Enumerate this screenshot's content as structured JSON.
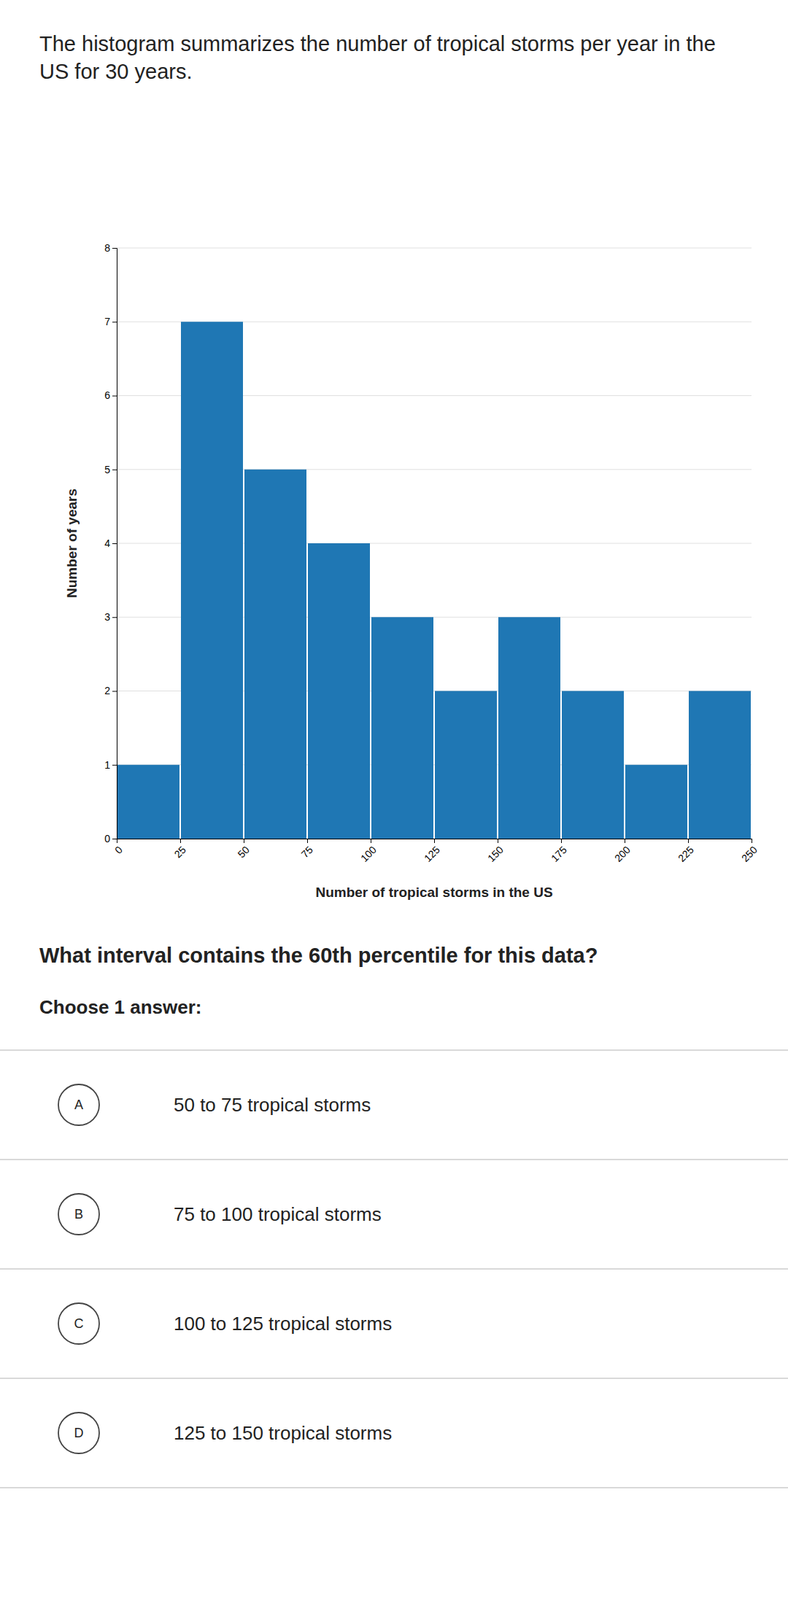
{
  "chart_data": {
    "type": "histogram",
    "title": "The histogram summarizes the number of tropical storms per year in the US for 30 years.",
    "xlabel": "Number of tropical storms in the US",
    "ylabel": "Number of years",
    "bins": [
      0,
      25,
      50,
      75,
      100,
      125,
      150,
      175,
      200,
      225,
      250
    ],
    "values": [
      1,
      7,
      5,
      4,
      3,
      2,
      3,
      2,
      1,
      2
    ],
    "xlim": [
      0,
      250
    ],
    "xticks": [
      0,
      25,
      50,
      75,
      100,
      125,
      150,
      175,
      200,
      225,
      250
    ],
    "ylim": [
      0,
      8
    ],
    "yticks": [
      0,
      1,
      2,
      3,
      4,
      5,
      6,
      7,
      8
    ],
    "grid": true,
    "annotations": [
      {
        "text": "What interval contains the 60th percentile for this data?"
      },
      {
        "text": "Choose 1 answer:"
      },
      {
        "label": "A",
        "text": "50 to 75 tropical storms"
      },
      {
        "label": "B",
        "text": "75 to 100 tropical storms"
      },
      {
        "label": "C",
        "text": "100 to 125 tropical storms"
      },
      {
        "label": "D",
        "text": "125 to 150 tropical storms"
      }
    ]
  }
}
